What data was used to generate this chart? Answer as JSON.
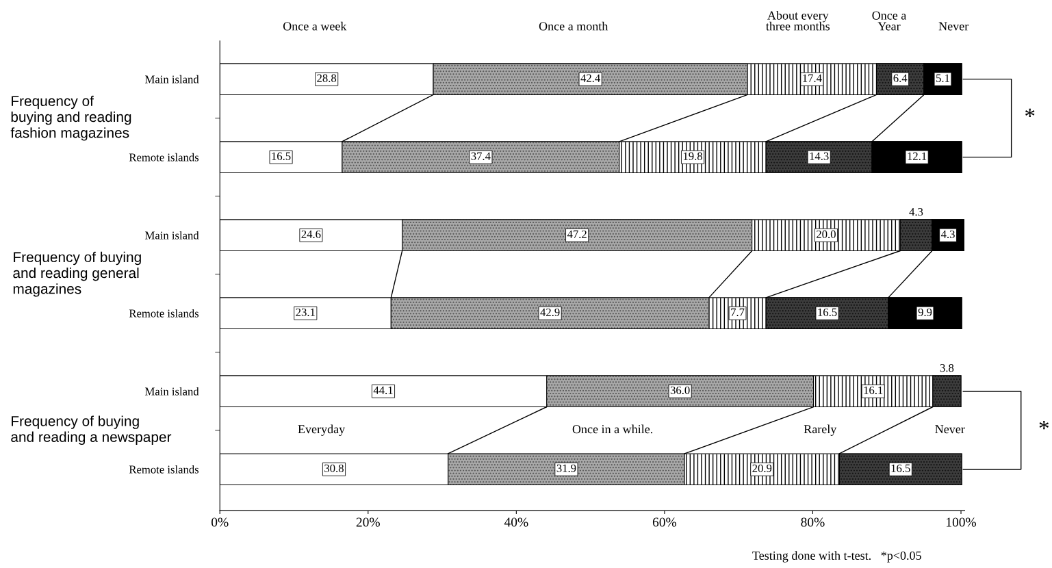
{
  "chart_data": {
    "type": "bar",
    "orientation": "horizontal",
    "stacked": true,
    "categories": [
      "Main island",
      "Remote islands",
      "Main island",
      "Remote islands",
      "Main island",
      "Remote islands"
    ],
    "series": [
      {
        "name": "Once a week",
        "color": "#ffffff",
        "values": [
          28.8,
          16.5,
          24.6,
          23.1,
          44.1,
          30.8
        ],
        "value_labels": [
          "28.8",
          "16.5",
          "24.6",
          "23.1",
          "44.1",
          "30.8"
        ]
      },
      {
        "name": "Once a month",
        "color": "#a8a8a8",
        "values": [
          42.4,
          37.4,
          47.2,
          42.9,
          36.0,
          31.9
        ],
        "value_labels": [
          "42.4",
          "37.4",
          "47.2",
          "42.9",
          "36.0",
          "31.9"
        ]
      },
      {
        "name": "About every\nthree months",
        "color": "#ffffff",
        "values": [
          17.4,
          19.8,
          20.0,
          7.7,
          16.1,
          20.9
        ],
        "value_labels": [
          "17.4",
          "19.8",
          "20.0",
          "7.7",
          "16.1",
          "20.9"
        ]
      },
      {
        "name": "Once a\nYear",
        "color": "#3c3c3c",
        "values": [
          6.4,
          14.3,
          4.3,
          16.5,
          3.8,
          16.5
        ],
        "value_labels": [
          "6.4",
          "14.3",
          "4.3",
          "16.5",
          "3.8",
          "16.5"
        ]
      },
      {
        "name": "Never",
        "color": "#000000",
        "values": [
          5.1,
          12.1,
          4.3,
          9.9,
          null,
          null
        ],
        "value_labels": [
          "5.1",
          "12.1",
          "4.3",
          "9.9",
          null,
          null
        ]
      }
    ],
    "xlim": [
      0,
      100.5
    ],
    "xticks": [
      {
        "value": 0,
        "label": "0%"
      },
      {
        "value": 20,
        "label": "20%"
      },
      {
        "value": 40,
        "label": "40%"
      },
      {
        "value": 60,
        "label": "60%"
      },
      {
        "value": 80,
        "label": "80%"
      },
      {
        "value": 100,
        "label": "100%"
      }
    ],
    "annotations": [
      "Frequency of\nbuying and reading\nfashion magazines",
      "Frequency of buying\nand reading general\nmagazines",
      "Frequency of buying\nand reading a newspaper",
      "Everyday",
      "Once in a while.",
      "Rarely",
      "Never",
      "*",
      "*",
      "Testing done with t-test.   *p<0.05"
    ],
    "legend": false,
    "grid": false
  }
}
